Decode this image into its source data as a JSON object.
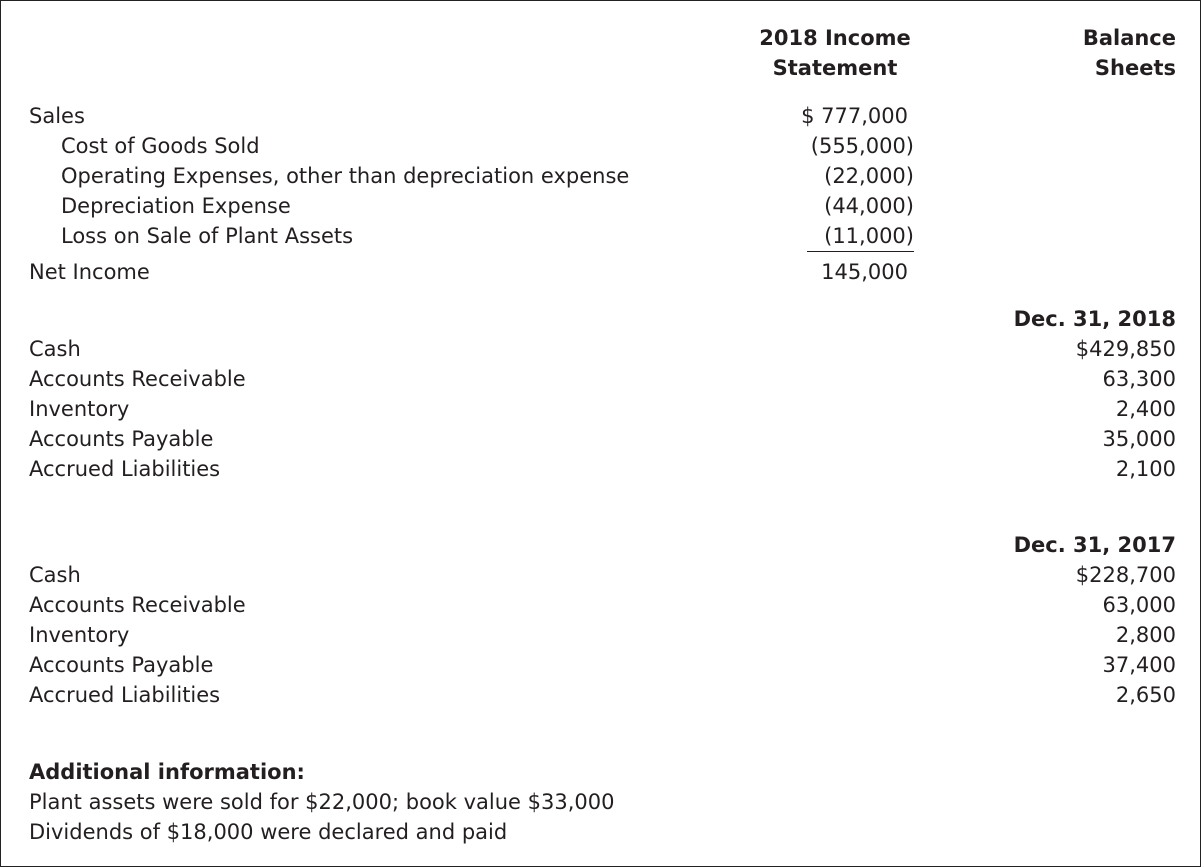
{
  "header": {
    "income_statement": [
      "2018 Income",
      "Statement"
    ],
    "balance_sheets": [
      "Balance",
      "Sheets"
    ]
  },
  "income_statement": {
    "rows": [
      {
        "label": "Sales",
        "amount": "$ 777,000"
      },
      {
        "label": "Cost of Goods Sold",
        "amount": "(555,000)"
      },
      {
        "label": "Operating Expenses, other than depreciation expense",
        "amount": "(22,000)"
      },
      {
        "label": "Depreciation Expense",
        "amount": "(44,000)"
      },
      {
        "label": "Loss on Sale of Plant Assets",
        "amount": "(11,000)"
      }
    ],
    "net_income": {
      "label": "Net Income",
      "amount": "145,000"
    }
  },
  "balance_sheets": [
    {
      "date": "Dec. 31, 2018",
      "rows": [
        {
          "label": "Cash",
          "amount": "$429,850"
        },
        {
          "label": "Accounts Receivable",
          "amount": "63,300"
        },
        {
          "label": "Inventory",
          "amount": "2,400"
        },
        {
          "label": "Accounts Payable",
          "amount": "35,000"
        },
        {
          "label": "Accrued Liabilities",
          "amount": "2,100"
        }
      ]
    },
    {
      "date": "Dec. 31, 2017",
      "rows": [
        {
          "label": "Cash",
          "amount": "$228,700"
        },
        {
          "label": "Accounts Receivable",
          "amount": "63,000"
        },
        {
          "label": "Inventory",
          "amount": "2,800"
        },
        {
          "label": "Accounts Payable",
          "amount": "37,400"
        },
        {
          "label": "Accrued Liabilities",
          "amount": "2,650"
        }
      ]
    }
  ],
  "additional_information": {
    "title": "Additional information:",
    "lines": [
      "Plant assets were sold for $22,000; book value $33,000",
      "Dividends of $18,000 were declared and paid"
    ]
  }
}
